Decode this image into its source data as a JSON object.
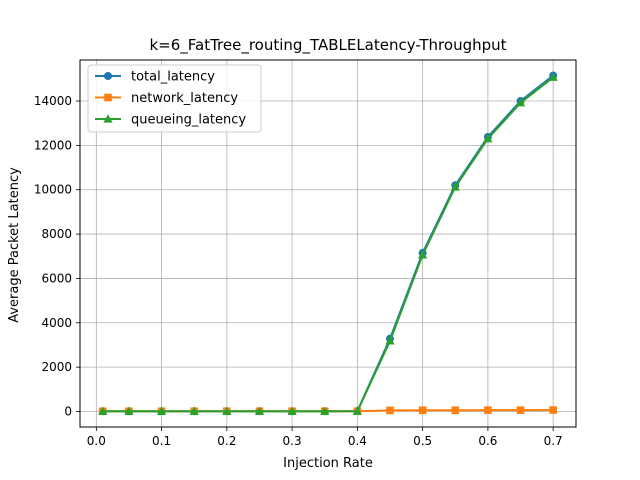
{
  "chart_data": {
    "type": "line",
    "title": "k=6_FatTree_routing_TABLELatency-Throughput",
    "xlabel": "Injection Rate",
    "ylabel": "Average Packet Latency",
    "xlim": [
      -0.025,
      0.735
    ],
    "ylim": [
      -700,
      15850
    ],
    "x_ticks": [
      0.0,
      0.1,
      0.2,
      0.3,
      0.4,
      0.5,
      0.6,
      0.7
    ],
    "x_tick_labels": [
      "0.0",
      "0.1",
      "0.2",
      "0.3",
      "0.4",
      "0.5",
      "0.6",
      "0.7"
    ],
    "y_ticks": [
      0,
      2000,
      4000,
      6000,
      8000,
      10000,
      12000,
      14000
    ],
    "y_tick_labels": [
      "0",
      "2000",
      "4000",
      "6000",
      "8000",
      "10000",
      "12000",
      "14000"
    ],
    "grid": true,
    "legend_position": "top-left",
    "x": [
      0.01,
      0.05,
      0.1,
      0.15,
      0.2,
      0.25,
      0.3,
      0.35,
      0.4,
      0.45,
      0.5,
      0.55,
      0.6,
      0.65,
      0.7
    ],
    "series": [
      {
        "name": "total_latency",
        "color": "#1f77b4",
        "marker": "circle",
        "values": [
          12,
          12,
          12,
          12,
          12,
          12,
          12,
          12,
          20,
          3280,
          7150,
          10200,
          12380,
          14000,
          15150
        ]
      },
      {
        "name": "network_latency",
        "color": "#ff7f0e",
        "marker": "square",
        "values": [
          10,
          10,
          10,
          10,
          10,
          10,
          10,
          10,
          12,
          50,
          55,
          58,
          60,
          62,
          64
        ]
      },
      {
        "name": "queueing_latency",
        "color": "#2ca02c",
        "marker": "triangle",
        "values": [
          2,
          2,
          2,
          2,
          2,
          2,
          2,
          2,
          8,
          3180,
          7060,
          10120,
          12300,
          13920,
          15070
        ]
      }
    ]
  }
}
